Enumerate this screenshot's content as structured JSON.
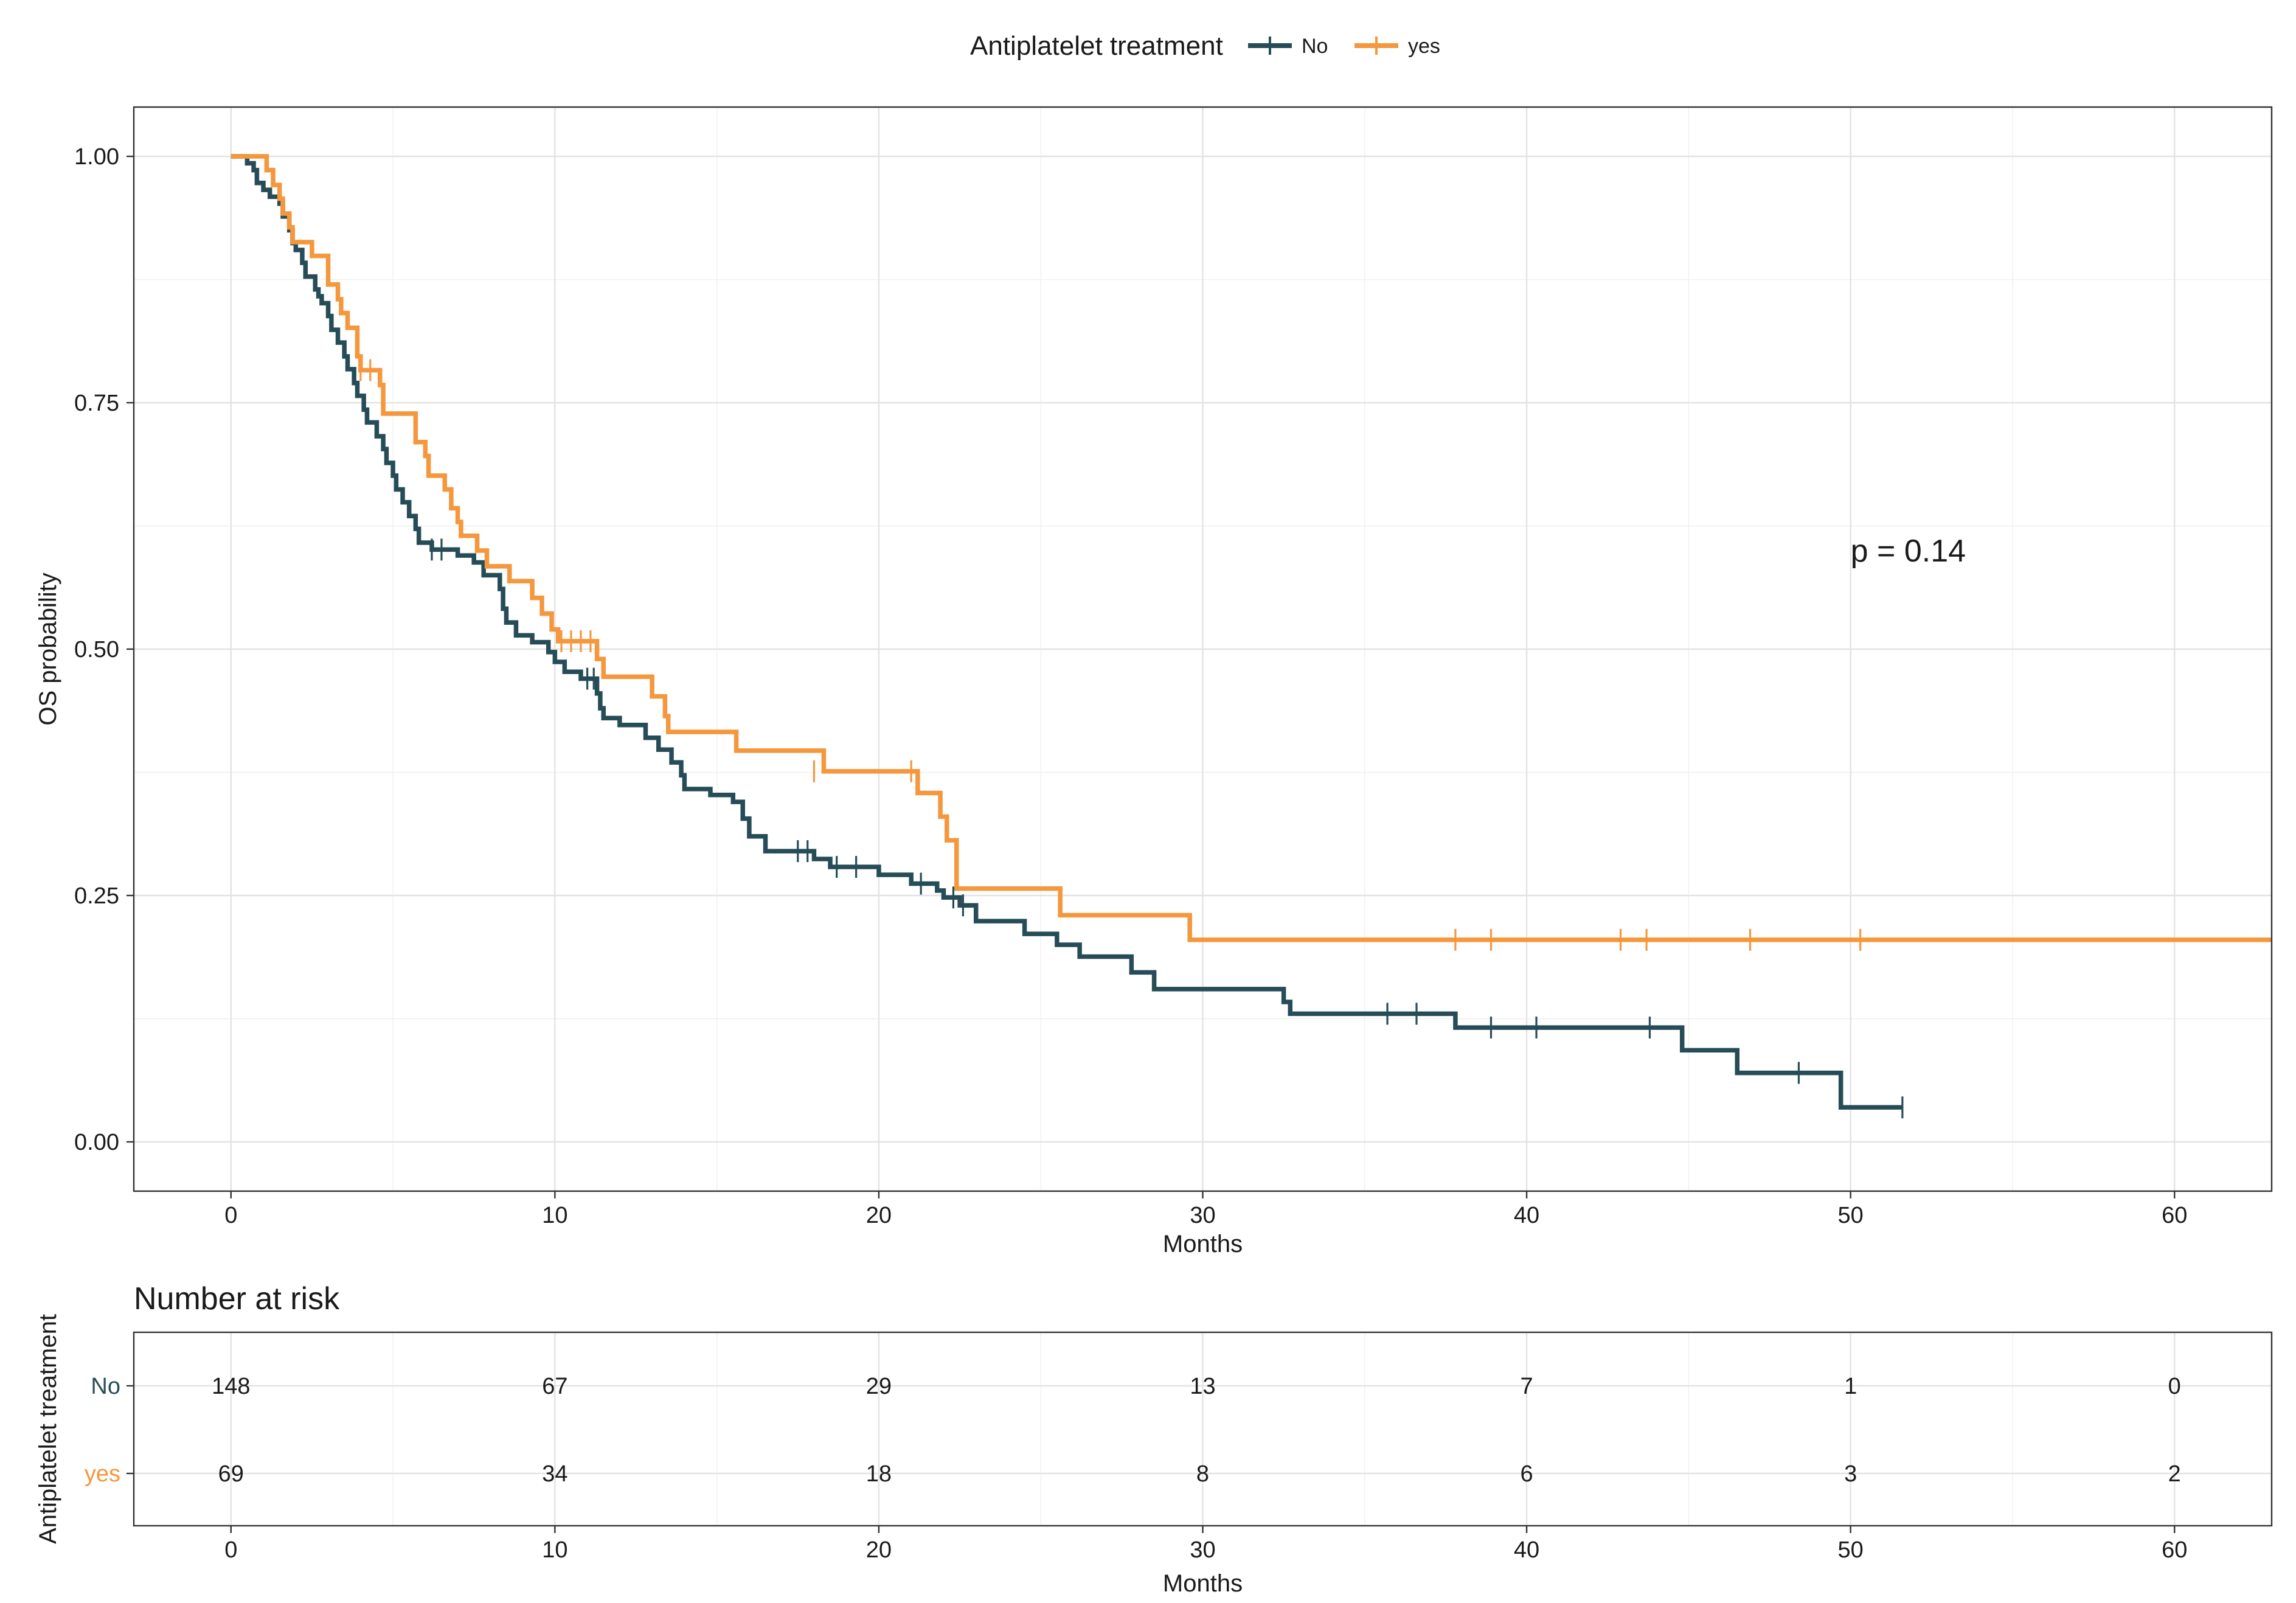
{
  "chart_data": {
    "type": "line",
    "subtype": "kaplan-meier",
    "legend": {
      "title": "Antiplatelet treatment",
      "position": "top",
      "entries": [
        "No",
        "yes"
      ]
    },
    "colors": {
      "No": "#264d57",
      "yes": "#f5973d"
    },
    "xlabel": "Months",
    "ylabel": "OS probability",
    "xlim": [
      -3,
      63
    ],
    "ylim": [
      -0.05,
      1.05
    ],
    "xticks": [
      0,
      10,
      20,
      30,
      40,
      50,
      60
    ],
    "xtick_labels": [
      "0",
      "10",
      "20",
      "30",
      "40",
      "50",
      "60"
    ],
    "yticks": [
      0,
      0.25,
      0.5,
      0.75,
      1
    ],
    "ytick_labels": [
      "0.00",
      "0.25",
      "0.50",
      "0.75",
      "1.00"
    ],
    "grid": true,
    "annotation": "p = 0.14",
    "annotation_at": [
      50,
      0.6
    ],
    "series": [
      {
        "name": "No",
        "steps": [
          [
            0,
            1.0
          ],
          [
            0.5,
            0.993
          ],
          [
            0.7,
            0.986
          ],
          [
            0.8,
            0.973
          ],
          [
            1.0,
            0.966
          ],
          [
            1.2,
            0.959
          ],
          [
            1.5,
            0.952
          ],
          [
            1.6,
            0.939
          ],
          [
            1.8,
            0.925
          ],
          [
            1.9,
            0.912
          ],
          [
            2.0,
            0.905
          ],
          [
            2.2,
            0.892
          ],
          [
            2.3,
            0.878
          ],
          [
            2.6,
            0.865
          ],
          [
            2.7,
            0.858
          ],
          [
            2.8,
            0.851
          ],
          [
            3.0,
            0.838
          ],
          [
            3.1,
            0.824
          ],
          [
            3.3,
            0.811
          ],
          [
            3.5,
            0.797
          ],
          [
            3.6,
            0.784
          ],
          [
            3.8,
            0.77
          ],
          [
            3.9,
            0.757
          ],
          [
            4.1,
            0.743
          ],
          [
            4.2,
            0.73
          ],
          [
            4.5,
            0.716
          ],
          [
            4.7,
            0.703
          ],
          [
            4.8,
            0.689
          ],
          [
            5.0,
            0.676
          ],
          [
            5.1,
            0.662
          ],
          [
            5.3,
            0.649
          ],
          [
            5.5,
            0.635
          ],
          [
            5.7,
            0.622
          ],
          [
            5.8,
            0.608
          ],
          [
            6.2,
            0.601
          ],
          [
            7.0,
            0.595
          ],
          [
            7.5,
            0.588
          ],
          [
            7.8,
            0.575
          ],
          [
            8.3,
            0.561
          ],
          [
            8.4,
            0.541
          ],
          [
            8.5,
            0.527
          ],
          [
            8.8,
            0.514
          ],
          [
            9.3,
            0.507
          ],
          [
            9.8,
            0.497
          ],
          [
            10.0,
            0.487
          ],
          [
            10.3,
            0.477
          ],
          [
            10.8,
            0.47
          ],
          [
            11.3,
            0.455
          ],
          [
            11.4,
            0.44
          ],
          [
            11.5,
            0.43
          ],
          [
            12.0,
            0.423
          ],
          [
            12.8,
            0.41
          ],
          [
            13.2,
            0.398
          ],
          [
            13.6,
            0.385
          ],
          [
            13.9,
            0.372
          ],
          [
            14.0,
            0.358
          ],
          [
            14.8,
            0.352
          ],
          [
            15.5,
            0.345
          ],
          [
            15.8,
            0.328
          ],
          [
            16.0,
            0.31
          ],
          [
            16.5,
            0.295
          ],
          [
            18.0,
            0.287
          ],
          [
            18.5,
            0.279
          ],
          [
            20.0,
            0.271
          ],
          [
            21.0,
            0.262
          ],
          [
            21.8,
            0.255
          ],
          [
            22.0,
            0.248
          ],
          [
            22.5,
            0.24
          ],
          [
            23.0,
            0.224
          ],
          [
            24.5,
            0.211
          ],
          [
            25.5,
            0.2
          ],
          [
            26.2,
            0.188
          ],
          [
            27.8,
            0.172
          ],
          [
            28.5,
            0.155
          ],
          [
            32.5,
            0.142
          ],
          [
            32.7,
            0.13
          ],
          [
            37.8,
            0.116
          ],
          [
            44.8,
            0.093
          ],
          [
            46.5,
            0.07
          ],
          [
            49.7,
            0.035
          ]
        ],
        "end": 51.6,
        "censor_marks": [
          [
            6.2,
            0.601
          ],
          [
            6.5,
            0.601
          ],
          [
            11.0,
            0.47
          ],
          [
            11.2,
            0.47
          ],
          [
            17.5,
            0.295
          ],
          [
            17.8,
            0.295
          ],
          [
            18.7,
            0.279
          ],
          [
            19.3,
            0.279
          ],
          [
            21.3,
            0.262
          ],
          [
            22.3,
            0.248
          ],
          [
            22.6,
            0.24
          ],
          [
            35.7,
            0.13
          ],
          [
            36.6,
            0.13
          ],
          [
            38.9,
            0.116
          ],
          [
            40.3,
            0.116
          ],
          [
            43.8,
            0.116
          ],
          [
            48.4,
            0.07
          ],
          [
            51.6,
            0.035
          ]
        ]
      },
      {
        "name": "yes",
        "steps": [
          [
            0,
            1.0
          ],
          [
            1.1,
            0.986
          ],
          [
            1.3,
            0.971
          ],
          [
            1.5,
            0.957
          ],
          [
            1.6,
            0.942
          ],
          [
            1.8,
            0.928
          ],
          [
            1.9,
            0.913
          ],
          [
            2.5,
            0.899
          ],
          [
            3.0,
            0.87
          ],
          [
            3.3,
            0.855
          ],
          [
            3.4,
            0.841
          ],
          [
            3.6,
            0.826
          ],
          [
            3.9,
            0.797
          ],
          [
            4.0,
            0.783
          ],
          [
            4.6,
            0.768
          ],
          [
            4.7,
            0.739
          ],
          [
            5.7,
            0.71
          ],
          [
            6.0,
            0.696
          ],
          [
            6.1,
            0.676
          ],
          [
            6.6,
            0.662
          ],
          [
            6.8,
            0.643
          ],
          [
            7.0,
            0.629
          ],
          [
            7.1,
            0.615
          ],
          [
            7.6,
            0.6
          ],
          [
            7.9,
            0.584
          ],
          [
            8.6,
            0.569
          ],
          [
            9.3,
            0.552
          ],
          [
            9.6,
            0.536
          ],
          [
            9.9,
            0.52
          ],
          [
            10.1,
            0.508
          ],
          [
            11.3,
            0.49
          ],
          [
            11.5,
            0.472
          ],
          [
            13.0,
            0.452
          ],
          [
            13.4,
            0.432
          ],
          [
            13.5,
            0.416
          ],
          [
            15.6,
            0.397
          ],
          [
            18.3,
            0.376
          ],
          [
            21.2,
            0.354
          ],
          [
            21.9,
            0.33
          ],
          [
            22.1,
            0.306
          ],
          [
            22.4,
            0.257
          ],
          [
            25.6,
            0.23
          ],
          [
            29.6,
            0.205
          ]
        ],
        "end": 63,
        "censor_marks": [
          [
            4.0,
            0.783
          ],
          [
            4.3,
            0.783
          ],
          [
            10.2,
            0.508
          ],
          [
            10.5,
            0.508
          ],
          [
            10.8,
            0.508
          ],
          [
            11.1,
            0.508
          ],
          [
            18.0,
            0.376
          ],
          [
            21.0,
            0.376
          ],
          [
            37.8,
            0.205
          ],
          [
            38.9,
            0.205
          ],
          [
            42.9,
            0.205
          ],
          [
            43.7,
            0.205
          ],
          [
            46.9,
            0.205
          ],
          [
            50.3,
            0.205
          ]
        ]
      }
    ],
    "risk_table": {
      "title": "Number at risk",
      "ylabel": "Antiplatelet treatment",
      "xlabel": "Months",
      "times": [
        0,
        10,
        20,
        30,
        40,
        50,
        60
      ],
      "time_labels": [
        "0",
        "10",
        "20",
        "30",
        "40",
        "50",
        "60"
      ],
      "rows": [
        {
          "name": "No",
          "counts": [
            "148",
            "67",
            "29",
            "13",
            "7",
            "1",
            "0"
          ]
        },
        {
          "name": "yes",
          "counts": [
            "69",
            "34",
            "18",
            "8",
            "6",
            "3",
            "2"
          ]
        }
      ]
    }
  }
}
